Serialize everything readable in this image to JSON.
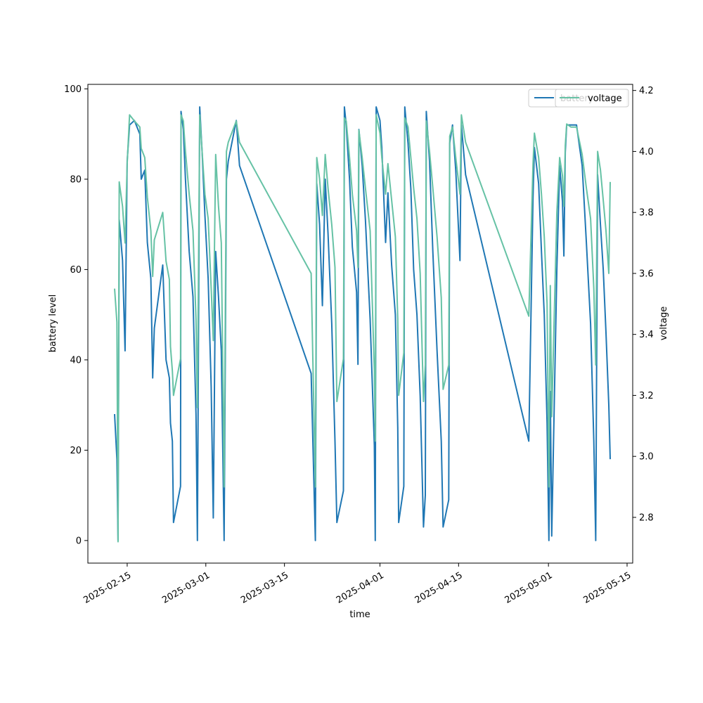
{
  "chart_data": {
    "type": "line",
    "xlabel": "time",
    "ylabel": "battery level",
    "y2label": "voltage",
    "xlim": [
      "2025-02-08",
      "2025-05-16"
    ],
    "ylim": [
      -5,
      101
    ],
    "y2lim": [
      2.65,
      4.22
    ],
    "x_ticks": [
      "2025-02-15",
      "2025-03-01",
      "2025-03-15",
      "2025-04-01",
      "2025-04-15",
      "2025-05-01",
      "2025-05-15"
    ],
    "y_ticks": [
      0,
      20,
      40,
      60,
      80,
      100
    ],
    "y2_ticks": [
      2.8,
      3.0,
      3.2,
      3.4,
      3.6,
      3.8,
      4.0,
      4.2
    ],
    "legend_position": "upper right",
    "grid": false,
    "series": [
      {
        "name": "battery",
        "axis": "left",
        "color": "#1f77b4",
        "points": [
          [
            "2025-02-12 18:00",
            28
          ],
          [
            "2025-02-13 04:00",
            18
          ],
          [
            "2025-02-13 09:00",
            0
          ],
          [
            "2025-02-13 14:00",
            71
          ],
          [
            "2025-02-14 04:00",
            62
          ],
          [
            "2025-02-14 15:00",
            42
          ],
          [
            "2025-02-15 00:00",
            84
          ],
          [
            "2025-02-15 10:00",
            92
          ],
          [
            "2025-02-16 07:00",
            93
          ],
          [
            "2025-02-17 06:00",
            90
          ],
          [
            "2025-02-17 12:00",
            80
          ],
          [
            "2025-02-18 03:00",
            82
          ],
          [
            "2025-02-18 14:00",
            66
          ],
          [
            "2025-02-19 05:00",
            58
          ],
          [
            "2025-02-19 13:00",
            36
          ],
          [
            "2025-02-19 20:00",
            47
          ],
          [
            "2025-02-21 08:00",
            61
          ],
          [
            "2025-02-21 22:00",
            40
          ],
          [
            "2025-02-22 12:00",
            36
          ],
          [
            "2025-02-22 17:00",
            26
          ],
          [
            "2025-02-23 01:00",
            22
          ],
          [
            "2025-02-23 06:00",
            4
          ],
          [
            "2025-02-24 12:00",
            12
          ],
          [
            "2025-02-24 14:00",
            95
          ],
          [
            "2025-02-25 00:00",
            91
          ],
          [
            "2025-02-25 09:00",
            80
          ],
          [
            "2025-02-26 01:00",
            64
          ],
          [
            "2025-02-26 17:00",
            54
          ],
          [
            "2025-02-27 06:00",
            28
          ],
          [
            "2025-02-27 12:00",
            0
          ],
          [
            "2025-02-27 22:00",
            96
          ],
          [
            "2025-02-28 08:00",
            86
          ],
          [
            "2025-02-28 20:00",
            72
          ],
          [
            "2025-03-01 10:00",
            58
          ],
          [
            "2025-03-01 23:00",
            34
          ],
          [
            "2025-03-02 08:00",
            5
          ],
          [
            "2025-03-02 18:00",
            64
          ],
          [
            "2025-03-03 06:00",
            54
          ],
          [
            "2025-03-03 18:00",
            42
          ],
          [
            "2025-03-04 06:00",
            0
          ],
          [
            "2025-03-04 16:00",
            80
          ],
          [
            "2025-03-05 00:00",
            84
          ],
          [
            "2025-03-06 10:00",
            93
          ],
          [
            "2025-03-07 00:00",
            83
          ],
          [
            "2025-03-19 18:00",
            37
          ],
          [
            "2025-03-20 12:00",
            0
          ],
          [
            "2025-03-20 18:00",
            79
          ],
          [
            "2025-03-21 06:00",
            70
          ],
          [
            "2025-03-21 18:00",
            52
          ],
          [
            "2025-03-22 06:00",
            80
          ],
          [
            "2025-03-22 18:00",
            68
          ],
          [
            "2025-03-23 10:00",
            48
          ],
          [
            "2025-03-24 00:00",
            22
          ],
          [
            "2025-03-24 08:00",
            4
          ],
          [
            "2025-03-25 12:00",
            11
          ],
          [
            "2025-03-25 16:00",
            96
          ],
          [
            "2025-03-26 00:00",
            92
          ],
          [
            "2025-03-26 14:00",
            80
          ],
          [
            "2025-03-27 02:00",
            65
          ],
          [
            "2025-03-27 20:00",
            55
          ],
          [
            "2025-03-28 02:00",
            39
          ],
          [
            "2025-03-28 06:00",
            91
          ],
          [
            "2025-03-28 20:00",
            83
          ],
          [
            "2025-03-29 10:00",
            71
          ],
          [
            "2025-03-30 06:00",
            49
          ],
          [
            "2025-03-31 00:00",
            21
          ],
          [
            "2025-03-31 04:00",
            0
          ],
          [
            "2025-03-31 08:00",
            96
          ],
          [
            "2025-04-01 00:00",
            93
          ],
          [
            "2025-04-01 08:00",
            87
          ],
          [
            "2025-04-02 00:00",
            66
          ],
          [
            "2025-04-02 10:00",
            77
          ],
          [
            "2025-04-03 02:00",
            61
          ],
          [
            "2025-04-03 18:00",
            50
          ],
          [
            "2025-04-04 04:00",
            25
          ],
          [
            "2025-04-04 08:00",
            4
          ],
          [
            "2025-04-05 06:00",
            12
          ],
          [
            "2025-04-05 10:00",
            96
          ],
          [
            "2025-04-06 00:00",
            88
          ],
          [
            "2025-04-06 12:00",
            78
          ],
          [
            "2025-04-07 00:00",
            60
          ],
          [
            "2025-04-07 14:00",
            50
          ],
          [
            "2025-04-08 04:00",
            32
          ],
          [
            "2025-04-08 18:00",
            3
          ],
          [
            "2025-04-09 02:00",
            10
          ],
          [
            "2025-04-09 06:00",
            95
          ],
          [
            "2025-04-09 20:00",
            84
          ],
          [
            "2025-04-10 10:00",
            64
          ],
          [
            "2025-04-11 04:00",
            42
          ],
          [
            "2025-04-11 22:00",
            22
          ],
          [
            "2025-04-12 06:00",
            3
          ],
          [
            "2025-04-13 06:00",
            9
          ],
          [
            "2025-04-13 10:00",
            88
          ],
          [
            "2025-04-13 22:00",
            92
          ],
          [
            "2025-04-14 12:00",
            82
          ],
          [
            "2025-04-15 06:00",
            62
          ],
          [
            "2025-04-15 12:00",
            92
          ],
          [
            "2025-04-16 06:00",
            81
          ],
          [
            "2025-04-27 12:00",
            22
          ],
          [
            "2025-04-28 06:00",
            76
          ],
          [
            "2025-04-28 12:00",
            87
          ],
          [
            "2025-04-29 06:00",
            79
          ],
          [
            "2025-04-29 18:00",
            64
          ],
          [
            "2025-04-30 06:00",
            50
          ],
          [
            "2025-04-30 18:00",
            26
          ],
          [
            "2025-05-01 02:00",
            0
          ],
          [
            "2025-05-01 08:00",
            33
          ],
          [
            "2025-05-01 14:00",
            1
          ],
          [
            "2025-05-02 12:00",
            60
          ],
          [
            "2025-05-03 00:00",
            83
          ],
          [
            "2025-05-03 12:00",
            75
          ],
          [
            "2025-05-03 18:00",
            63
          ],
          [
            "2025-05-04 00:00",
            86
          ],
          [
            "2025-05-04 06:00",
            92
          ],
          [
            "2025-05-05 00:00",
            92
          ],
          [
            "2025-05-06 00:00",
            92
          ],
          [
            "2025-05-07 00:00",
            83
          ],
          [
            "2025-05-07 18:00",
            66
          ],
          [
            "2025-05-08 12:00",
            48
          ],
          [
            "2025-05-09 02:00",
            22
          ],
          [
            "2025-05-09 10:00",
            0
          ],
          [
            "2025-05-09 18:00",
            81
          ],
          [
            "2025-05-10 06:00",
            70
          ],
          [
            "2025-05-10 18:00",
            60
          ],
          [
            "2025-05-11 06:00",
            46
          ],
          [
            "2025-05-11 18:00",
            30
          ],
          [
            "2025-05-12 00:00",
            18
          ]
        ]
      },
      {
        "name": "voltage",
        "axis": "right",
        "color": "#66c2a5",
        "points": [
          [
            "2025-02-12 18:00",
            3.55
          ],
          [
            "2025-02-13 04:00",
            3.44
          ],
          [
            "2025-02-13 09:00",
            2.72
          ],
          [
            "2025-02-13 14:00",
            3.9
          ],
          [
            "2025-02-14 04:00",
            3.82
          ],
          [
            "2025-02-14 15:00",
            3.7
          ],
          [
            "2025-02-15 00:00",
            3.96
          ],
          [
            "2025-02-15 10:00",
            4.12
          ],
          [
            "2025-02-16 07:00",
            4.1
          ],
          [
            "2025-02-17 06:00",
            4.08
          ],
          [
            "2025-02-17 12:00",
            4.01
          ],
          [
            "2025-02-18 03:00",
            3.98
          ],
          [
            "2025-02-18 14:00",
            3.85
          ],
          [
            "2025-02-19 05:00",
            3.74
          ],
          [
            "2025-02-19 13:00",
            3.59
          ],
          [
            "2025-02-19 20:00",
            3.71
          ],
          [
            "2025-02-21 08:00",
            3.8
          ],
          [
            "2025-02-21 22:00",
            3.64
          ],
          [
            "2025-02-22 12:00",
            3.58
          ],
          [
            "2025-02-22 17:00",
            3.36
          ],
          [
            "2025-02-23 01:00",
            3.28
          ],
          [
            "2025-02-23 06:00",
            3.2
          ],
          [
            "2025-02-24 12:00",
            3.32
          ],
          [
            "2025-02-24 14:00",
            4.12
          ],
          [
            "2025-02-25 00:00",
            4.1
          ],
          [
            "2025-02-25 09:00",
            4.0
          ],
          [
            "2025-02-26 01:00",
            3.86
          ],
          [
            "2025-02-26 17:00",
            3.74
          ],
          [
            "2025-02-27 06:00",
            3.45
          ],
          [
            "2025-02-27 12:00",
            3.16
          ],
          [
            "2025-02-27 22:00",
            4.12
          ],
          [
            "2025-02-28 08:00",
            4.0
          ],
          [
            "2025-02-28 20:00",
            3.86
          ],
          [
            "2025-03-01 10:00",
            3.78
          ],
          [
            "2025-03-01 23:00",
            3.55
          ],
          [
            "2025-03-02 08:00",
            3.38
          ],
          [
            "2025-03-02 18:00",
            3.99
          ],
          [
            "2025-03-03 06:00",
            3.82
          ],
          [
            "2025-03-03 18:00",
            3.7
          ],
          [
            "2025-03-04 06:00",
            2.9
          ],
          [
            "2025-03-04 16:00",
            4.0
          ],
          [
            "2025-03-05 00:00",
            4.03
          ],
          [
            "2025-03-06 10:00",
            4.1
          ],
          [
            "2025-03-07 00:00",
            4.03
          ],
          [
            "2025-03-19 18:00",
            3.6
          ],
          [
            "2025-03-20 12:00",
            2.9
          ],
          [
            "2025-03-20 18:00",
            3.98
          ],
          [
            "2025-03-21 06:00",
            3.91
          ],
          [
            "2025-03-21 18:00",
            3.79
          ],
          [
            "2025-03-22 06:00",
            3.99
          ],
          [
            "2025-03-22 18:00",
            3.88
          ],
          [
            "2025-03-23 10:00",
            3.76
          ],
          [
            "2025-03-24 00:00",
            3.62
          ],
          [
            "2025-03-24 08:00",
            3.18
          ],
          [
            "2025-03-25 12:00",
            3.32
          ],
          [
            "2025-03-25 16:00",
            4.11
          ],
          [
            "2025-03-26 00:00",
            4.1
          ],
          [
            "2025-03-26 14:00",
            3.98
          ],
          [
            "2025-03-27 02:00",
            3.86
          ],
          [
            "2025-03-27 20:00",
            3.74
          ],
          [
            "2025-03-28 02:00",
            3.62
          ],
          [
            "2025-03-28 06:00",
            4.07
          ],
          [
            "2025-03-28 20:00",
            3.98
          ],
          [
            "2025-03-29 10:00",
            3.88
          ],
          [
            "2025-03-30 06:00",
            3.74
          ],
          [
            "2025-03-31 00:00",
            3.28
          ],
          [
            "2025-03-31 04:00",
            3.05
          ],
          [
            "2025-03-31 08:00",
            4.12
          ],
          [
            "2025-04-01 00:00",
            4.06
          ],
          [
            "2025-04-01 08:00",
            3.98
          ],
          [
            "2025-04-02 00:00",
            3.86
          ],
          [
            "2025-04-02 10:00",
            3.96
          ],
          [
            "2025-04-03 02:00",
            3.84
          ],
          [
            "2025-04-03 18:00",
            3.72
          ],
          [
            "2025-04-04 04:00",
            3.45
          ],
          [
            "2025-04-04 08:00",
            3.2
          ],
          [
            "2025-04-05 06:00",
            3.34
          ],
          [
            "2025-04-05 10:00",
            4.11
          ],
          [
            "2025-04-06 00:00",
            4.08
          ],
          [
            "2025-04-06 12:00",
            3.98
          ],
          [
            "2025-04-07 00:00",
            3.88
          ],
          [
            "2025-04-07 14:00",
            3.78
          ],
          [
            "2025-04-08 04:00",
            3.6
          ],
          [
            "2025-04-08 18:00",
            3.18
          ],
          [
            "2025-04-09 02:00",
            3.3
          ],
          [
            "2025-04-09 06:00",
            4.1
          ],
          [
            "2025-04-09 20:00",
            4.0
          ],
          [
            "2025-04-10 10:00",
            3.88
          ],
          [
            "2025-04-11 04:00",
            3.72
          ],
          [
            "2025-04-11 22:00",
            3.52
          ],
          [
            "2025-04-12 06:00",
            3.22
          ],
          [
            "2025-04-13 06:00",
            3.3
          ],
          [
            "2025-04-13 10:00",
            4.05
          ],
          [
            "2025-04-13 22:00",
            4.08
          ],
          [
            "2025-04-14 12:00",
            3.98
          ],
          [
            "2025-04-15 06:00",
            3.86
          ],
          [
            "2025-04-15 12:00",
            4.12
          ],
          [
            "2025-04-16 06:00",
            4.03
          ],
          [
            "2025-04-27 12:00",
            3.46
          ],
          [
            "2025-04-28 06:00",
            3.96
          ],
          [
            "2025-04-28 12:00",
            4.06
          ],
          [
            "2025-04-29 06:00",
            3.98
          ],
          [
            "2025-04-29 18:00",
            3.86
          ],
          [
            "2025-04-30 06:00",
            3.72
          ],
          [
            "2025-04-30 18:00",
            3.5
          ],
          [
            "2025-05-01 02:00",
            2.9
          ],
          [
            "2025-05-01 08:00",
            3.56
          ],
          [
            "2025-05-01 14:00",
            3.13
          ],
          [
            "2025-05-02 12:00",
            3.8
          ],
          [
            "2025-05-03 00:00",
            3.98
          ],
          [
            "2025-05-03 12:00",
            3.92
          ],
          [
            "2025-05-03 18:00",
            3.82
          ],
          [
            "2025-05-04 00:00",
            4.02
          ],
          [
            "2025-05-04 06:00",
            4.09
          ],
          [
            "2025-05-05 00:00",
            4.08
          ],
          [
            "2025-05-06 00:00",
            4.08
          ],
          [
            "2025-05-07 00:00",
            3.99
          ],
          [
            "2025-05-07 18:00",
            3.88
          ],
          [
            "2025-05-08 12:00",
            3.78
          ],
          [
            "2025-05-09 02:00",
            3.55
          ],
          [
            "2025-05-09 10:00",
            3.3
          ],
          [
            "2025-05-09 18:00",
            4.0
          ],
          [
            "2025-05-10 06:00",
            3.94
          ],
          [
            "2025-05-10 18:00",
            3.84
          ],
          [
            "2025-05-11 06:00",
            3.74
          ],
          [
            "2025-05-11 18:00",
            3.6
          ],
          [
            "2025-05-12 00:00",
            3.9
          ]
        ]
      }
    ]
  }
}
